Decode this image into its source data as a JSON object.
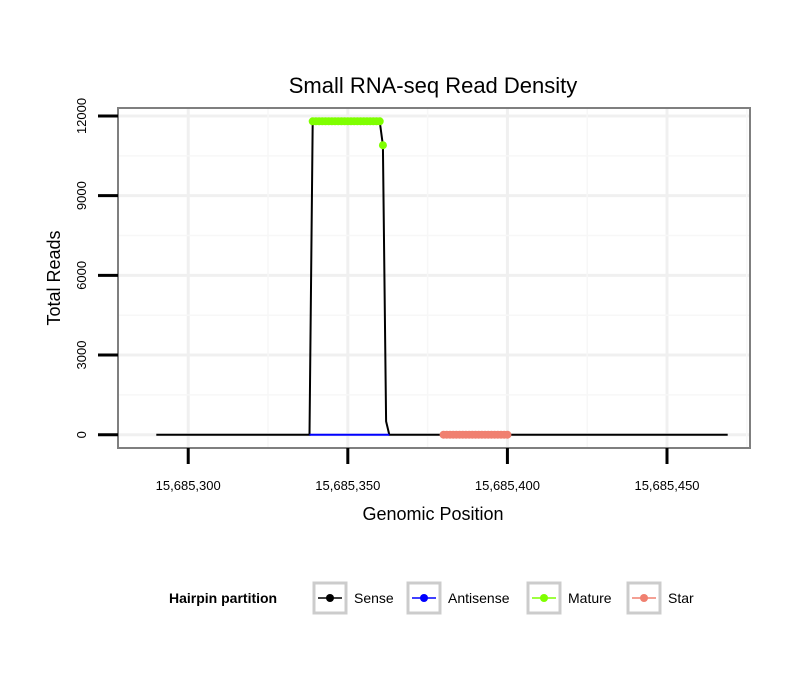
{
  "chart_data": {
    "type": "line",
    "title": "Small RNA-seq Read Density",
    "xlabel": "Genomic Position",
    "ylabel": "Total Reads",
    "xlim": [
      15685278,
      15685476
    ],
    "ylim": [
      -500,
      12300
    ],
    "x_ticks": [
      15685300,
      15685350,
      15685400,
      15685450
    ],
    "x_tick_labels": [
      "15,685,300",
      "15,685,350",
      "15,685,400",
      "15,685,450"
    ],
    "y_ticks": [
      0,
      3000,
      6000,
      9000,
      12000
    ],
    "y_tick_labels": [
      "0",
      "3000",
      "6000",
      "9000",
      "12000"
    ],
    "grid": true,
    "legend_title": "Hairpin partition",
    "legend_position": "bottom",
    "series": [
      {
        "name": "Sense",
        "color": "#000000",
        "style": "line",
        "x": [
          15685290,
          15685338,
          15685339,
          15685360,
          15685361,
          15685362,
          15685363,
          15685380,
          15685400,
          15685469
        ],
        "y": [
          0,
          0,
          11800,
          11800,
          10900,
          500,
          0,
          0,
          0,
          0
        ]
      },
      {
        "name": "Antisense",
        "color": "#0000ff",
        "style": "line",
        "x": [
          15685338,
          15685363
        ],
        "y": [
          0,
          0
        ]
      },
      {
        "name": "Mature",
        "color": "#7fff00",
        "style": "points",
        "x": [
          15685339,
          15685340,
          15685341,
          15685342,
          15685343,
          15685344,
          15685345,
          15685346,
          15685347,
          15685348,
          15685349,
          15685350,
          15685351,
          15685352,
          15685353,
          15685354,
          15685355,
          15685356,
          15685357,
          15685358,
          15685359,
          15685360,
          15685361
        ],
        "y": [
          11800,
          11800,
          11800,
          11800,
          11800,
          11800,
          11800,
          11800,
          11800,
          11800,
          11800,
          11800,
          11800,
          11800,
          11800,
          11800,
          11800,
          11800,
          11800,
          11800,
          11800,
          11800,
          10900
        ]
      },
      {
        "name": "Star",
        "color": "#f08070",
        "style": "points",
        "x": [
          15685380,
          15685381,
          15685382,
          15685383,
          15685384,
          15685385,
          15685386,
          15685387,
          15685388,
          15685389,
          15685390,
          15685391,
          15685392,
          15685393,
          15685394,
          15685395,
          15685396,
          15685397,
          15685398,
          15685399,
          15685400
        ],
        "y": [
          0,
          0,
          0,
          0,
          0,
          0,
          0,
          0,
          0,
          0,
          0,
          0,
          0,
          0,
          0,
          0,
          0,
          0,
          0,
          0,
          0
        ]
      }
    ]
  }
}
